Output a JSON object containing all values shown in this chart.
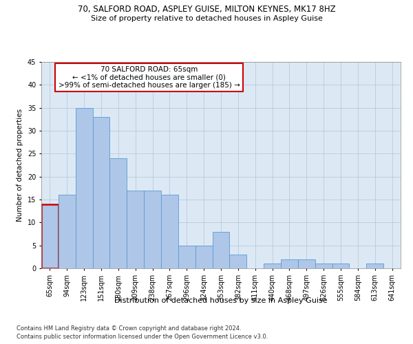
{
  "title1": "70, SALFORD ROAD, ASPLEY GUISE, MILTON KEYNES, MK17 8HZ",
  "title2": "Size of property relative to detached houses in Aspley Guise",
  "xlabel": "Distribution of detached houses by size in Aspley Guise",
  "ylabel": "Number of detached properties",
  "footnote1": "Contains HM Land Registry data © Crown copyright and database right 2024.",
  "footnote2": "Contains public sector information licensed under the Open Government Licence v3.0.",
  "annotation_title": "70 SALFORD ROAD: 65sqm",
  "annotation_line2": "← <1% of detached houses are smaller (0)",
  "annotation_line3": ">99% of semi-detached houses are larger (185) →",
  "categories": [
    "65sqm",
    "94sqm",
    "123sqm",
    "151sqm",
    "180sqm",
    "209sqm",
    "238sqm",
    "267sqm",
    "296sqm",
    "324sqm",
    "353sqm",
    "382sqm",
    "411sqm",
    "440sqm",
    "468sqm",
    "497sqm",
    "526sqm",
    "555sqm",
    "584sqm",
    "613sqm",
    "641sqm"
  ],
  "values": [
    14,
    16,
    35,
    33,
    24,
    17,
    17,
    16,
    5,
    5,
    8,
    3,
    0,
    1,
    2,
    2,
    1,
    1,
    0,
    1,
    0
  ],
  "bar_color": "#aec6e8",
  "bar_edge_color": "#5a9ad4",
  "highlight_bar_index": 0,
  "highlight_color": "#cc0000",
  "annotation_box_color": "#ffffff",
  "annotation_box_edge_color": "#cc0000",
  "background_color": "#ffffff",
  "plot_bg_color": "#dce9f5",
  "grid_color": "#b0c4d8",
  "ylim": [
    0,
    45
  ],
  "yticks": [
    0,
    5,
    10,
    15,
    20,
    25,
    30,
    35,
    40,
    45
  ],
  "title1_fontsize": 8.5,
  "title2_fontsize": 8,
  "xlabel_fontsize": 8,
  "ylabel_fontsize": 7.5,
  "tick_fontsize": 7,
  "annotation_fontsize": 7.5,
  "footnote_fontsize": 6
}
